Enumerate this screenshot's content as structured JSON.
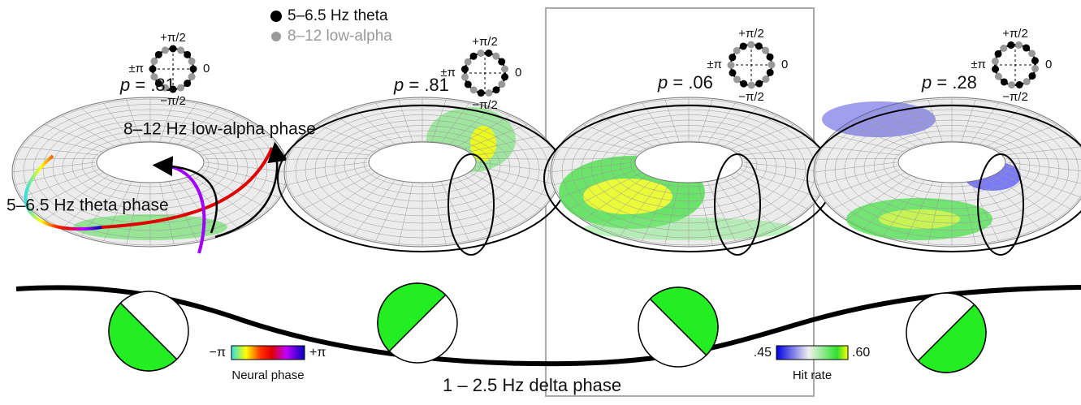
{
  "legend": {
    "theta": "5–6.5 Hz theta",
    "alpha": "8–12 low-alpha"
  },
  "polar_axis_labels": {
    "top": "+π/2",
    "right": "0",
    "bottom": "−π/2",
    "left": "±π"
  },
  "panels": [
    {
      "p_symbol": "p",
      "p_value": " = .81"
    },
    {
      "p_symbol": "p",
      "p_value": " = .81"
    },
    {
      "p_symbol": "p",
      "p_value": " = .06"
    },
    {
      "p_symbol": "p",
      "p_value": " = .28"
    }
  ],
  "annotations": {
    "alpha_phase": "8–12 Hz low-alpha phase",
    "theta_phase": "5–6.5 Hz theta phase",
    "delta_phase": "1 – 2.5 Hz delta phase"
  },
  "neural_phase_bar": {
    "min_label": "−π",
    "max_label": "+π",
    "title": "Neural phase"
  },
  "hit_rate_bar": {
    "min_label": ".45",
    "max_label": ".60",
    "title": "Hit rate"
  }
}
